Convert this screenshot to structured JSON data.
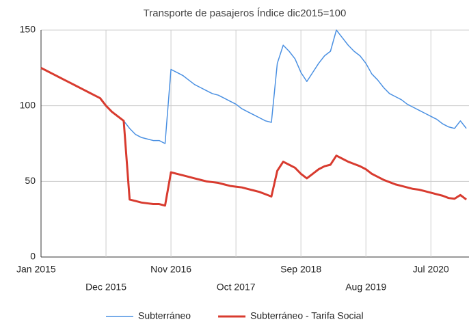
{
  "chart_data": {
    "type": "line",
    "title": "Transporte de pasajeros Índice dic2015=100",
    "categories": [
      "Jan 2015",
      null,
      null,
      null,
      null,
      null,
      null,
      null,
      null,
      null,
      null,
      "Dec 2015",
      null,
      null,
      null,
      null,
      null,
      null,
      null,
      null,
      null,
      null,
      "Nov 2016",
      null,
      null,
      null,
      null,
      null,
      null,
      null,
      null,
      null,
      null,
      "Oct 2017",
      null,
      null,
      null,
      null,
      null,
      null,
      null,
      null,
      null,
      null,
      "Sep 2018",
      null,
      null,
      null,
      null,
      null,
      null,
      null,
      null,
      null,
      null,
      "Aug 2019",
      null,
      null,
      null,
      null,
      null,
      null,
      null,
      null,
      null,
      null,
      "Jul 2020",
      null,
      null,
      null,
      null,
      null,
      null
    ],
    "series": [
      {
        "name": "Subterráneo",
        "color": "#4a90e2",
        "values": [
          125,
          123,
          121,
          119,
          117,
          115,
          113,
          111,
          109,
          107,
          105,
          100,
          96,
          93,
          90,
          85,
          81,
          79,
          78,
          77,
          77,
          75,
          124,
          122,
          120,
          117,
          114,
          112,
          110,
          108,
          107,
          105,
          103,
          101,
          98,
          96,
          94,
          92,
          90,
          89,
          128,
          140,
          136,
          131,
          122,
          116,
          122,
          128,
          133,
          136,
          150,
          145,
          140,
          136,
          133,
          128,
          121,
          117,
          112,
          108,
          106,
          104,
          101,
          99,
          97,
          95,
          93,
          91,
          88,
          86,
          85,
          90,
          85
        ]
      },
      {
        "name": "Subterráneo - Tarifa Social",
        "color": "#d83b2f",
        "values": [
          125,
          123,
          121,
          119,
          117,
          115,
          113,
          111,
          109,
          107,
          105,
          100,
          96,
          93,
          90,
          38,
          37,
          36,
          35.5,
          35,
          35,
          34,
          56,
          55,
          54,
          53,
          52,
          51,
          50,
          49.5,
          49,
          48,
          47,
          46.5,
          46,
          45,
          44,
          43,
          41.5,
          40,
          57,
          63,
          61,
          59,
          55,
          52,
          55,
          58,
          60,
          61,
          67,
          65,
          63,
          61.5,
          60,
          58,
          55,
          53,
          51,
          49.5,
          48,
          47,
          46,
          45,
          44.5,
          43.5,
          42.5,
          41.5,
          40.5,
          39,
          38.5,
          41,
          38
        ]
      }
    ],
    "ylim": [
      0,
      150
    ],
    "yticks": [
      0,
      50,
      100,
      150
    ],
    "grid": true
  }
}
